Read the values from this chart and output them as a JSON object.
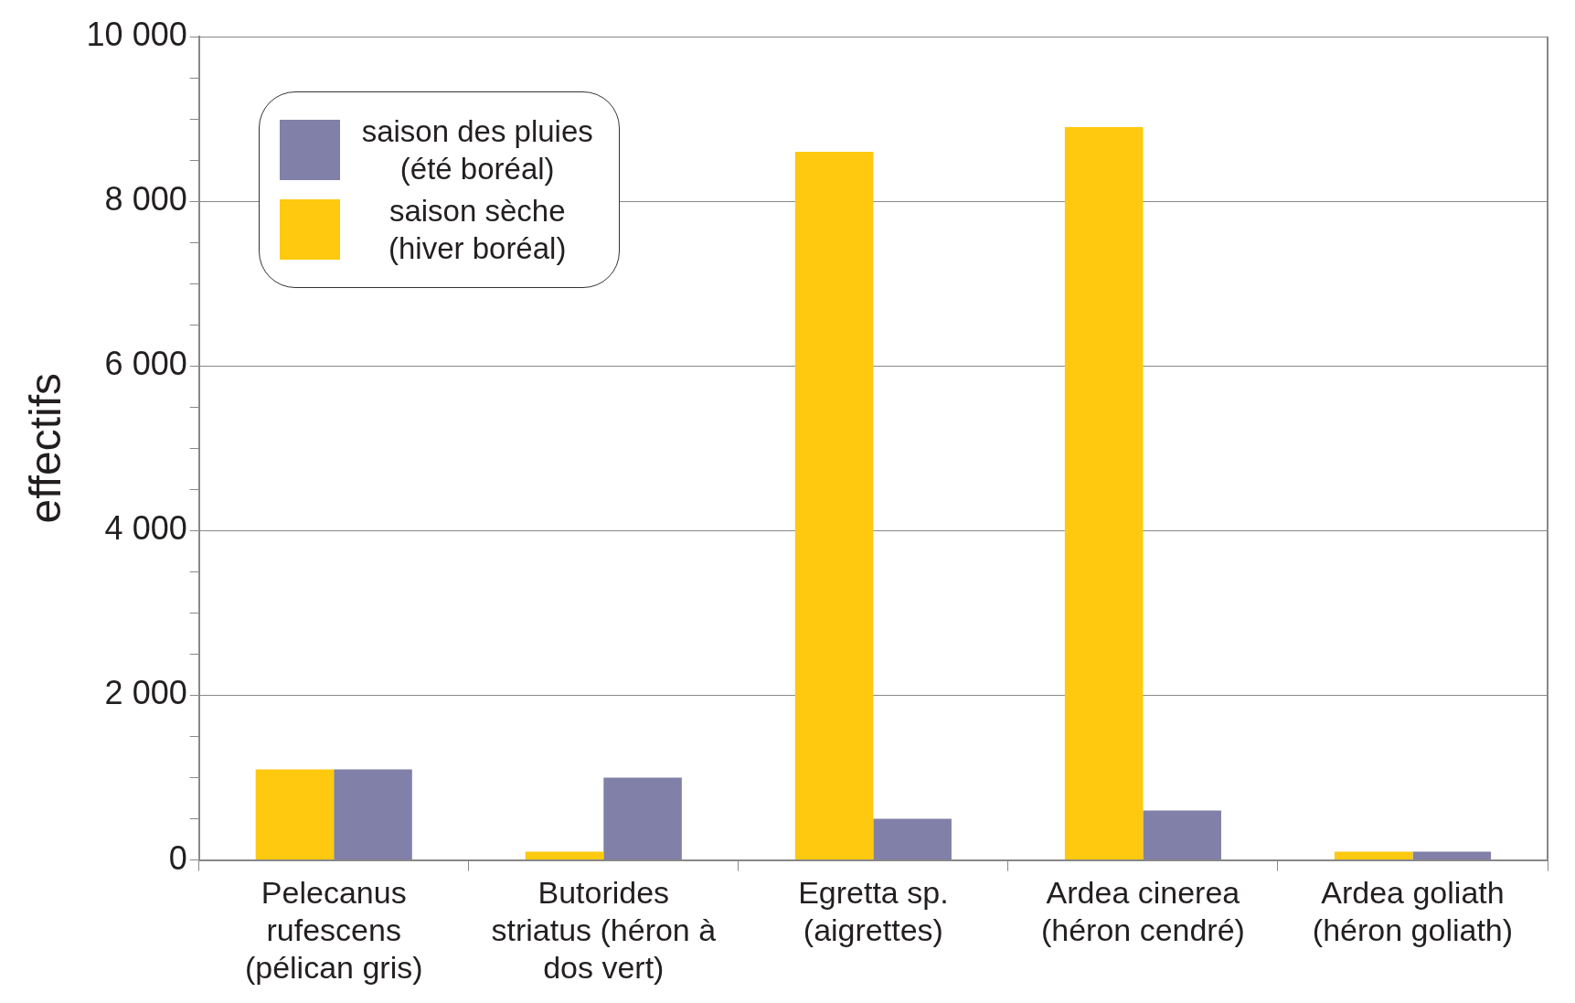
{
  "chart_data": {
    "type": "bar",
    "ylabel": "effectifs",
    "categories": [
      "Pelecanus rufescens (pélican gris)",
      "Butorides striatus (héron à dos vert)",
      "Egretta sp. (aigrettes)",
      "Ardea cinerea (héron cendré)",
      "Ardea goliath (héron goliath)"
    ],
    "series": [
      {
        "name": "saison sèche (hiver boréal)",
        "color": "#fec90f",
        "values": [
          1100,
          100,
          8600,
          8900,
          100
        ]
      },
      {
        "name": "saison des pluies (été boréal)",
        "color": "#8080a8",
        "values": [
          1100,
          1000,
          500,
          600,
          100
        ]
      }
    ],
    "ylim": [
      0,
      10000
    ],
    "yticks": [
      {
        "value": 0,
        "label": "0"
      },
      {
        "value": 500,
        "label": null
      },
      {
        "value": 1000,
        "label": null
      },
      {
        "value": 1500,
        "label": null
      },
      {
        "value": 2000,
        "label": "2 000"
      },
      {
        "value": 2500,
        "label": null
      },
      {
        "value": 3000,
        "label": null
      },
      {
        "value": 3500,
        "label": null
      },
      {
        "value": 4000,
        "label": "4 000"
      },
      {
        "value": 4500,
        "label": null
      },
      {
        "value": 5000,
        "label": null
      },
      {
        "value": 5500,
        "label": null
      },
      {
        "value": 6000,
        "label": "6 000"
      },
      {
        "value": 6500,
        "label": null
      },
      {
        "value": 7000,
        "label": null
      },
      {
        "value": 7500,
        "label": null
      },
      {
        "value": 8000,
        "label": "8 000"
      },
      {
        "value": 8500,
        "label": null
      },
      {
        "value": 9000,
        "label": null
      },
      {
        "value": 9500,
        "label": null
      },
      {
        "value": 10000,
        "label": "10 000"
      }
    ],
    "grid": "y",
    "legend": "top left"
  }
}
